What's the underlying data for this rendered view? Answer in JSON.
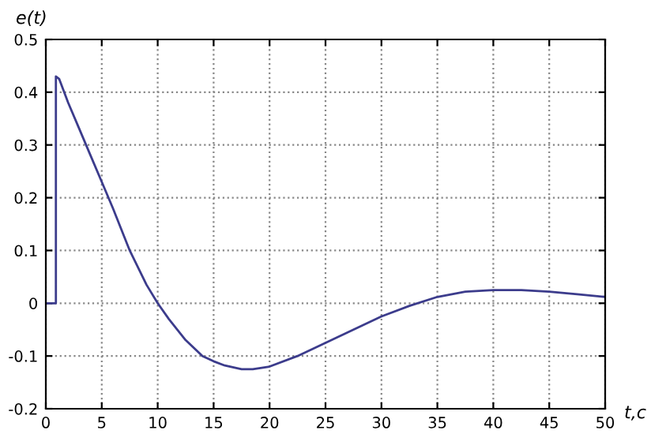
{
  "chart_data": {
    "type": "line",
    "xlabel": "t,c",
    "ylabel": "e(t)",
    "x": [
      0,
      0.9,
      0.9,
      1.2,
      2,
      3,
      4,
      5,
      6,
      7.5,
      9,
      10,
      11,
      12.5,
      14,
      15,
      16,
      17.5,
      18.5,
      20,
      22.5,
      25,
      27.5,
      30,
      32.5,
      35,
      37.5,
      40,
      42.5,
      45,
      47.5,
      50
    ],
    "series": [
      {
        "color": "#3c3c8c",
        "values": [
          0,
          0,
          0.43,
          0.425,
          0.38,
          0.33,
          0.28,
          0.23,
          0.18,
          0.1,
          0.035,
          0.0,
          -0.03,
          -0.07,
          -0.1,
          -0.11,
          -0.118,
          -0.125,
          -0.125,
          -0.12,
          -0.1,
          -0.075,
          -0.05,
          -0.025,
          -0.005,
          0.012,
          0.022,
          0.025,
          0.025,
          0.022,
          0.017,
          0.012
        ]
      }
    ],
    "xlim": [
      0,
      50
    ],
    "ylim": [
      -0.2,
      0.5
    ],
    "xticks": [
      0,
      5,
      10,
      15,
      20,
      25,
      30,
      35,
      40,
      45,
      50
    ],
    "yticks": [
      -0.2,
      -0.1,
      0,
      0.1,
      0.2,
      0.3,
      0.4,
      0.5
    ],
    "grid": true,
    "line_style": "solid",
    "marker": "none"
  }
}
